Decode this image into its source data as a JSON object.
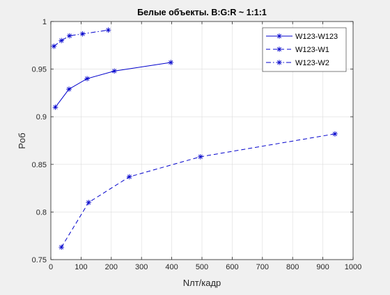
{
  "chart_data": {
    "type": "line",
    "title": "Белые объекты. B:G:R ~ 1:1:1",
    "xlabel": "Nлт/кадр",
    "ylabel": "Pоб",
    "xlim": [
      0,
      1000
    ],
    "ylim": [
      0.75,
      1.0
    ],
    "xticks": [
      0,
      100,
      200,
      300,
      400,
      500,
      600,
      700,
      800,
      900,
      1000
    ],
    "yticks": [
      0.75,
      0.8,
      0.85,
      0.9,
      0.95,
      1.0
    ],
    "xtick_labels": [
      "0",
      "100",
      "200",
      "300",
      "400",
      "500",
      "600",
      "700",
      "800",
      "900",
      "1000"
    ],
    "ytick_labels": [
      "0.75",
      "0.8",
      "0.85",
      "0.9",
      "0.95",
      "1"
    ],
    "grid": true,
    "legend_position": "top-right",
    "marker": "asterisk",
    "line_color": "#0000cc",
    "series": [
      {
        "name": "W123-W123",
        "line_style": "solid",
        "x": [
          15,
          60,
          120,
          210,
          397
        ],
        "y": [
          0.91,
          0.929,
          0.94,
          0.948,
          0.957
        ]
      },
      {
        "name": "W123-W1",
        "line_style": "dashed",
        "x": [
          35,
          125,
          260,
          495,
          940
        ],
        "y": [
          0.763,
          0.81,
          0.837,
          0.858,
          0.882
        ]
      },
      {
        "name": "W123-W2",
        "line_style": "dashdot",
        "x": [
          10,
          35,
          62,
          105,
          190
        ],
        "y": [
          0.974,
          0.98,
          0.985,
          0.987,
          0.991
        ]
      }
    ]
  }
}
